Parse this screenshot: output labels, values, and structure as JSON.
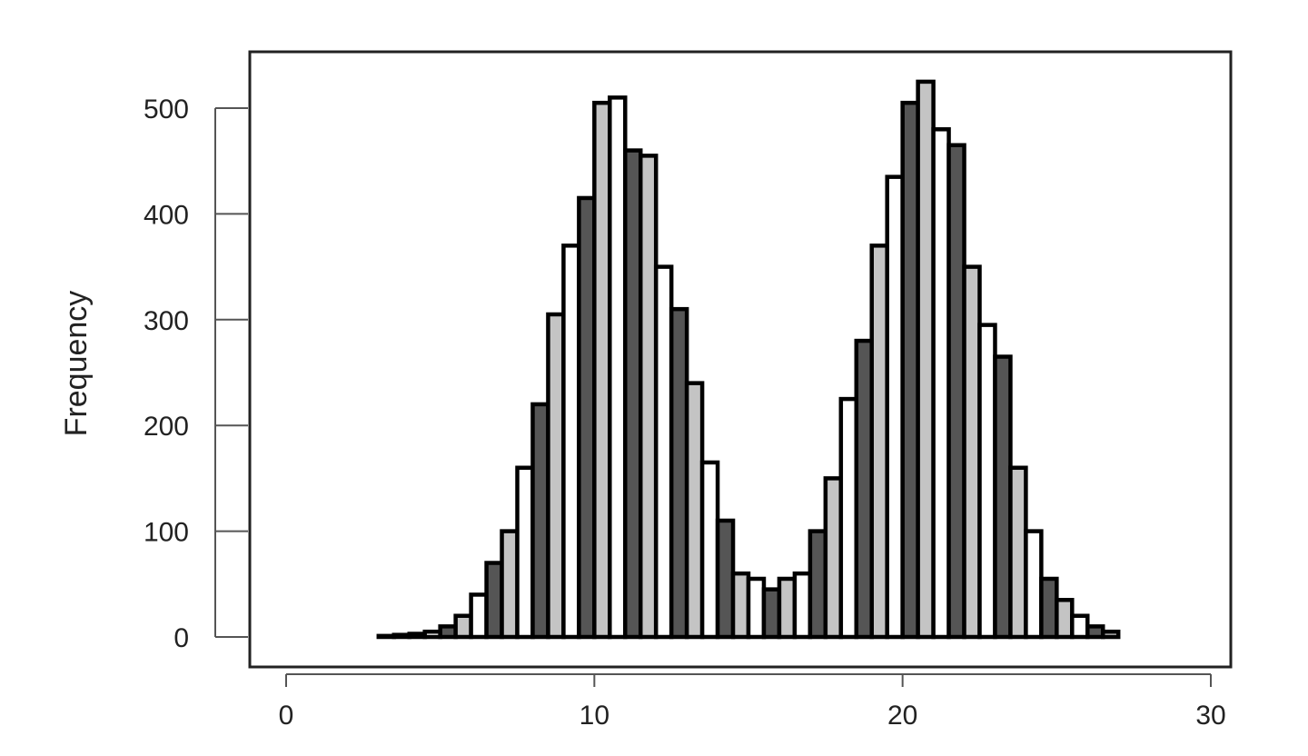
{
  "chart_data": {
    "type": "bar",
    "histogram": true,
    "title": "",
    "xlabel": "",
    "ylabel": "Frequency",
    "xlim": [
      0,
      30
    ],
    "ylim": [
      0,
      640
    ],
    "xticks": [
      {
        "value": 0,
        "label": "0"
      },
      {
        "value": 10,
        "label": "10"
      },
      {
        "value": 20,
        "label": "20"
      },
      {
        "value": 30,
        "label": "30"
      }
    ],
    "yticks": [
      {
        "value": 0,
        "label": "0"
      },
      {
        "value": 100,
        "label": "100"
      },
      {
        "value": 200,
        "label": "200"
      },
      {
        "value": 300,
        "label": "300"
      },
      {
        "value": 400,
        "label": "400"
      },
      {
        "value": 500,
        "label": "500"
      }
    ],
    "grid": false,
    "legend": "none",
    "bin_width": 0.5,
    "bins_start": 0.5,
    "values": [
      0,
      0,
      0,
      0,
      0,
      1,
      2,
      3,
      5,
      10,
      20,
      40,
      70,
      100,
      160,
      220,
      305,
      370,
      415,
      505,
      510,
      460,
      455,
      350,
      310,
      240,
      165,
      110,
      60,
      55,
      45,
      55,
      60,
      100,
      150,
      225,
      280,
      370,
      435,
      505,
      525,
      480,
      465,
      350,
      295,
      265,
      160,
      100,
      55,
      35,
      20,
      10,
      5,
      0
    ],
    "bar_colors": {
      "dark": "#555555",
      "light": "#c4c4c4",
      "white": "#ffffff",
      "outline": "#000000"
    }
  }
}
